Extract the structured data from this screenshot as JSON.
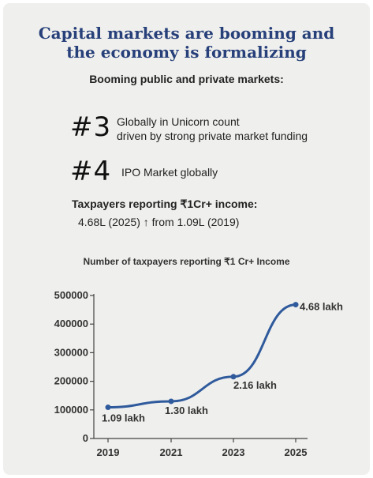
{
  "header": {
    "title_line1": "Capital markets are booming and",
    "title_line2": "the economy is formalizing",
    "subtitle": "Booming public and private markets:"
  },
  "ranks": [
    {
      "rank": "#3",
      "line1": "Globally in Unicorn count",
      "line2": "driven by strong private market funding"
    },
    {
      "rank": "#4",
      "line1": "IPO Market globally",
      "line2": ""
    }
  ],
  "taxpayers": {
    "heading": "Taxpayers reporting ₹1Cr+ income:",
    "value": "4.68L (2025) ↑ from 1.09L (2019)"
  },
  "chart_data": {
    "type": "line",
    "title": "Number of taxpayers reporting ₹1 Cr+ Income",
    "x": [
      "2019",
      "2021",
      "2023",
      "2025"
    ],
    "series": [
      {
        "values": [
          109000,
          130000,
          216000,
          468000
        ],
        "labels": [
          "1.09 lakh",
          "1.30 lakh",
          "2.16 lakh",
          "4.68 lakh"
        ]
      }
    ],
    "yticks": [
      0,
      100000,
      200000,
      300000,
      400000,
      500000
    ],
    "ylim": [
      0,
      500000
    ],
    "xlabel": "",
    "ylabel": "",
    "grid": false,
    "line_color": "#2f5a9c",
    "axis_color": "#444444"
  }
}
